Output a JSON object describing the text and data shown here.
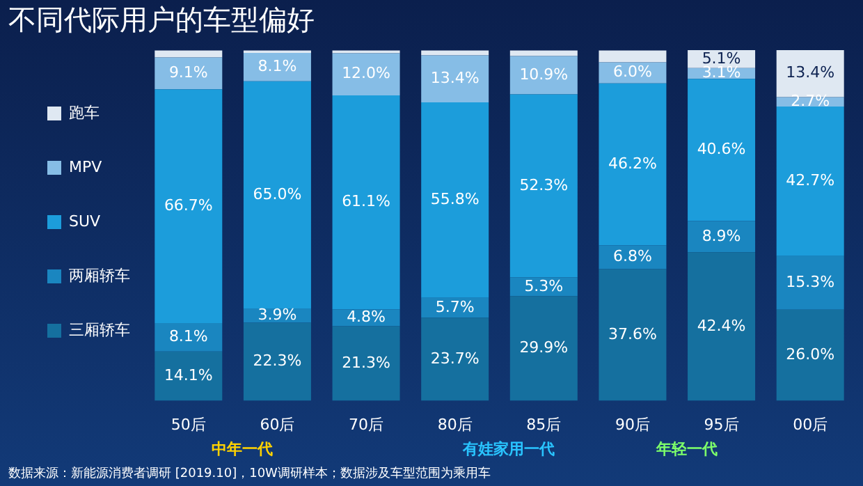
{
  "chart_data": {
    "type": "bar",
    "title": "不同代际用户的车型偏好",
    "stacked": true,
    "legend": "left",
    "grid": false,
    "categories": [
      "50后",
      "60后",
      "70后",
      "80后",
      "85后",
      "90后",
      "95后",
      "00后"
    ],
    "series": [
      {
        "name": "三厢轿车",
        "color": "#15709f",
        "values": [
          14.1,
          22.3,
          21.3,
          23.7,
          29.9,
          37.6,
          42.4,
          26.0
        ],
        "value_labels": [
          "14.1%",
          "22.3%",
          "21.3%",
          "23.7%",
          "29.9%",
          "37.6%",
          "42.4%",
          "26.0%"
        ]
      },
      {
        "name": "两厢轿车",
        "color": "#1a86c0",
        "values": [
          8.1,
          3.9,
          4.8,
          5.7,
          5.3,
          6.8,
          8.9,
          15.3
        ],
        "value_labels": [
          "8.1%",
          "3.9%",
          "4.8%",
          "5.7%",
          "5.3%",
          "6.8%",
          "8.9%",
          "15.3%"
        ]
      },
      {
        "name": "SUV",
        "color": "#1c9ddb",
        "values": [
          66.7,
          65.0,
          61.1,
          55.8,
          52.3,
          46.2,
          40.6,
          42.7
        ],
        "value_labels": [
          "66.7%",
          "65.0%",
          "61.1%",
          "55.8%",
          "52.3%",
          "46.2%",
          "40.6%",
          "42.7%"
        ]
      },
      {
        "name": "MPV",
        "color": "#86bde6",
        "values": [
          9.1,
          8.1,
          12.0,
          13.4,
          10.9,
          6.0,
          3.1,
          2.7
        ],
        "value_labels": [
          "9.1%",
          "8.1%",
          "12.0%",
          "13.4%",
          "10.9%",
          "6.0%",
          "3.1%",
          "2.7%"
        ]
      },
      {
        "name": "跑车",
        "color": "#dfe8f2",
        "values": [
          2.0,
          0.7,
          0.8,
          1.4,
          1.6,
          3.4,
          5.1,
          13.4
        ],
        "value_labels": [
          null,
          null,
          null,
          null,
          null,
          null,
          "5.1%",
          "13.4%"
        ]
      }
    ],
    "annotations": [
      "中年一代",
      "有娃家用一代",
      "年轻一代",
      "数据来源：新能源消费者调研 [2019.10]，10W调研样本；数据涉及车型范围为乘用车"
    ]
  }
}
